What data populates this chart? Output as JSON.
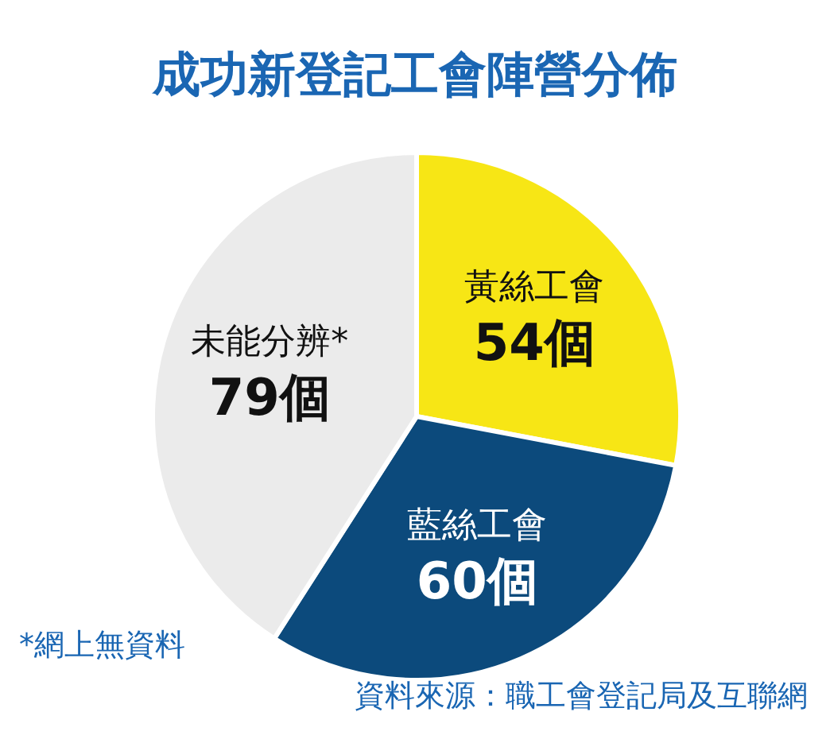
{
  "chart_data": {
    "type": "pie",
    "title": "成功新登記工會陣營分佈",
    "categories": [
      "黃絲工會",
      "藍絲工會",
      "未能分辨*"
    ],
    "values": [
      54,
      60,
      79
    ],
    "value_labels": [
      "54個",
      "60個",
      "79個"
    ],
    "colors": [
      "#f7e615",
      "#0c4a7c",
      "#ebebeb"
    ],
    "annotations": [
      "*網上無資料",
      "資料來源：職工會登記局及互聯網"
    ]
  }
}
